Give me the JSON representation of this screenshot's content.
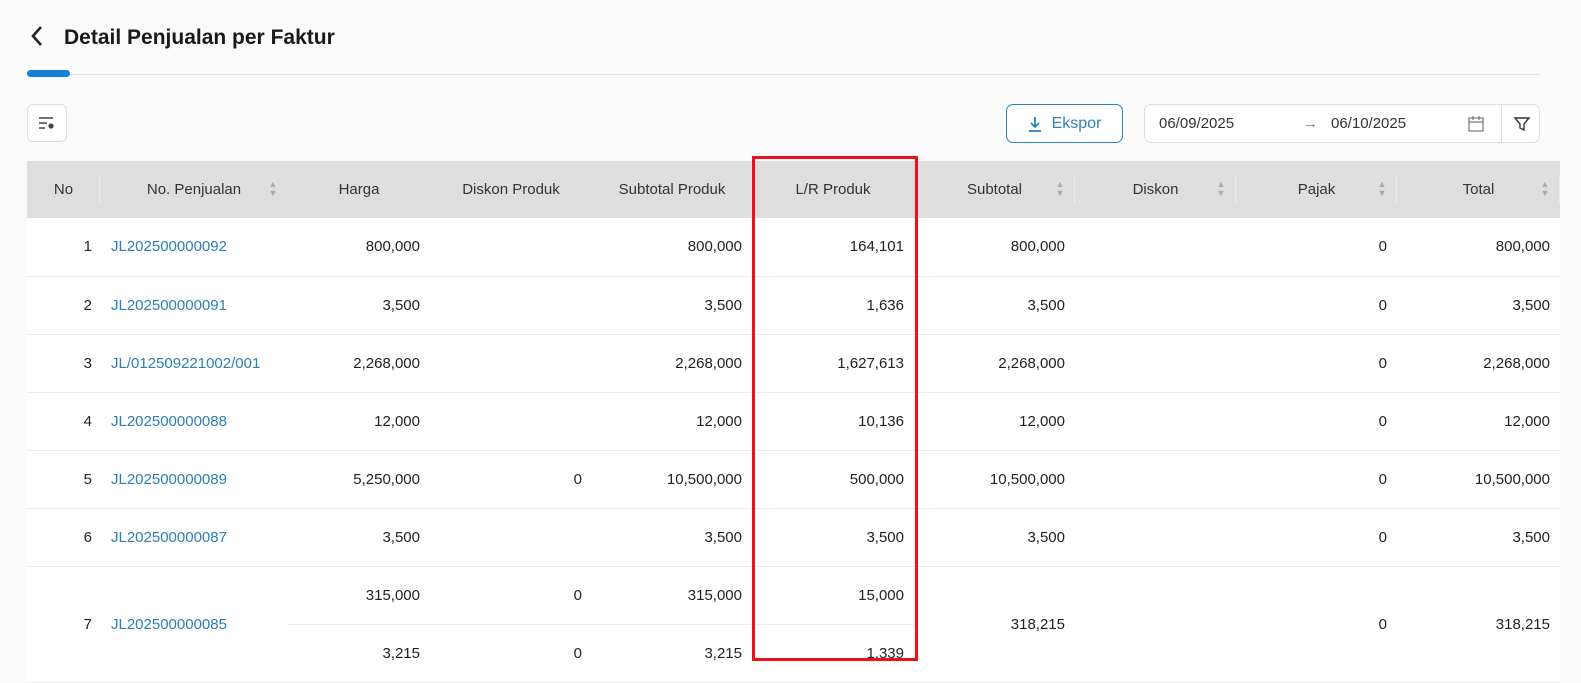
{
  "header": {
    "title": "Detail Penjualan per Faktur"
  },
  "toolbar": {
    "export_label": "Ekspor",
    "date_from": "06/09/2025",
    "date_to": "06/10/2025",
    "arrow": "→"
  },
  "colors": {
    "accent": "#1580d8",
    "link": "#2a7fb4",
    "highlight": "#e8141b"
  },
  "table": {
    "columns": [
      "No",
      "No. Penjualan",
      "Harga",
      "Diskon Produk",
      "Subtotal Produk",
      "L/R Produk",
      "Subtotal",
      "Diskon",
      "Pajak",
      "Total"
    ],
    "sortable": [
      false,
      true,
      false,
      false,
      false,
      false,
      true,
      true,
      true,
      true
    ],
    "rows": [
      {
        "no": "1",
        "id": "JL202500000092",
        "items": [
          {
            "harga": "800,000",
            "diskon_produk": "",
            "subtotal_produk": "800,000",
            "lr_produk": "164,101"
          }
        ],
        "subtotal": "800,000",
        "diskon": "",
        "pajak": "0",
        "total": "800,000"
      },
      {
        "no": "2",
        "id": "JL202500000091",
        "items": [
          {
            "harga": "3,500",
            "diskon_produk": "",
            "subtotal_produk": "3,500",
            "lr_produk": "1,636"
          }
        ],
        "subtotal": "3,500",
        "diskon": "",
        "pajak": "0",
        "total": "3,500"
      },
      {
        "no": "3",
        "id": "JL/012509221002/001",
        "items": [
          {
            "harga": "2,268,000",
            "diskon_produk": "",
            "subtotal_produk": "2,268,000",
            "lr_produk": "1,627,613"
          }
        ],
        "subtotal": "2,268,000",
        "diskon": "",
        "pajak": "0",
        "total": "2,268,000"
      },
      {
        "no": "4",
        "id": "JL202500000088",
        "items": [
          {
            "harga": "12,000",
            "diskon_produk": "",
            "subtotal_produk": "12,000",
            "lr_produk": "10,136"
          }
        ],
        "subtotal": "12,000",
        "diskon": "",
        "pajak": "0",
        "total": "12,000"
      },
      {
        "no": "5",
        "id": "JL202500000089",
        "items": [
          {
            "harga": "5,250,000",
            "diskon_produk": "0",
            "subtotal_produk": "10,500,000",
            "lr_produk": "500,000"
          }
        ],
        "subtotal": "10,500,000",
        "diskon": "",
        "pajak": "0",
        "total": "10,500,000"
      },
      {
        "no": "6",
        "id": "JL202500000087",
        "items": [
          {
            "harga": "3,500",
            "diskon_produk": "",
            "subtotal_produk": "3,500",
            "lr_produk": "3,500"
          }
        ],
        "subtotal": "3,500",
        "diskon": "",
        "pajak": "0",
        "total": "3,500"
      },
      {
        "no": "7",
        "id": "JL202500000085",
        "items": [
          {
            "harga": "315,000",
            "diskon_produk": "0",
            "subtotal_produk": "315,000",
            "lr_produk": "15,000"
          },
          {
            "harga": "3,215",
            "diskon_produk": "0",
            "subtotal_produk": "3,215",
            "lr_produk": "1,339"
          }
        ],
        "subtotal": "318,215",
        "diskon": "",
        "pajak": "0",
        "total": "318,215"
      }
    ]
  }
}
